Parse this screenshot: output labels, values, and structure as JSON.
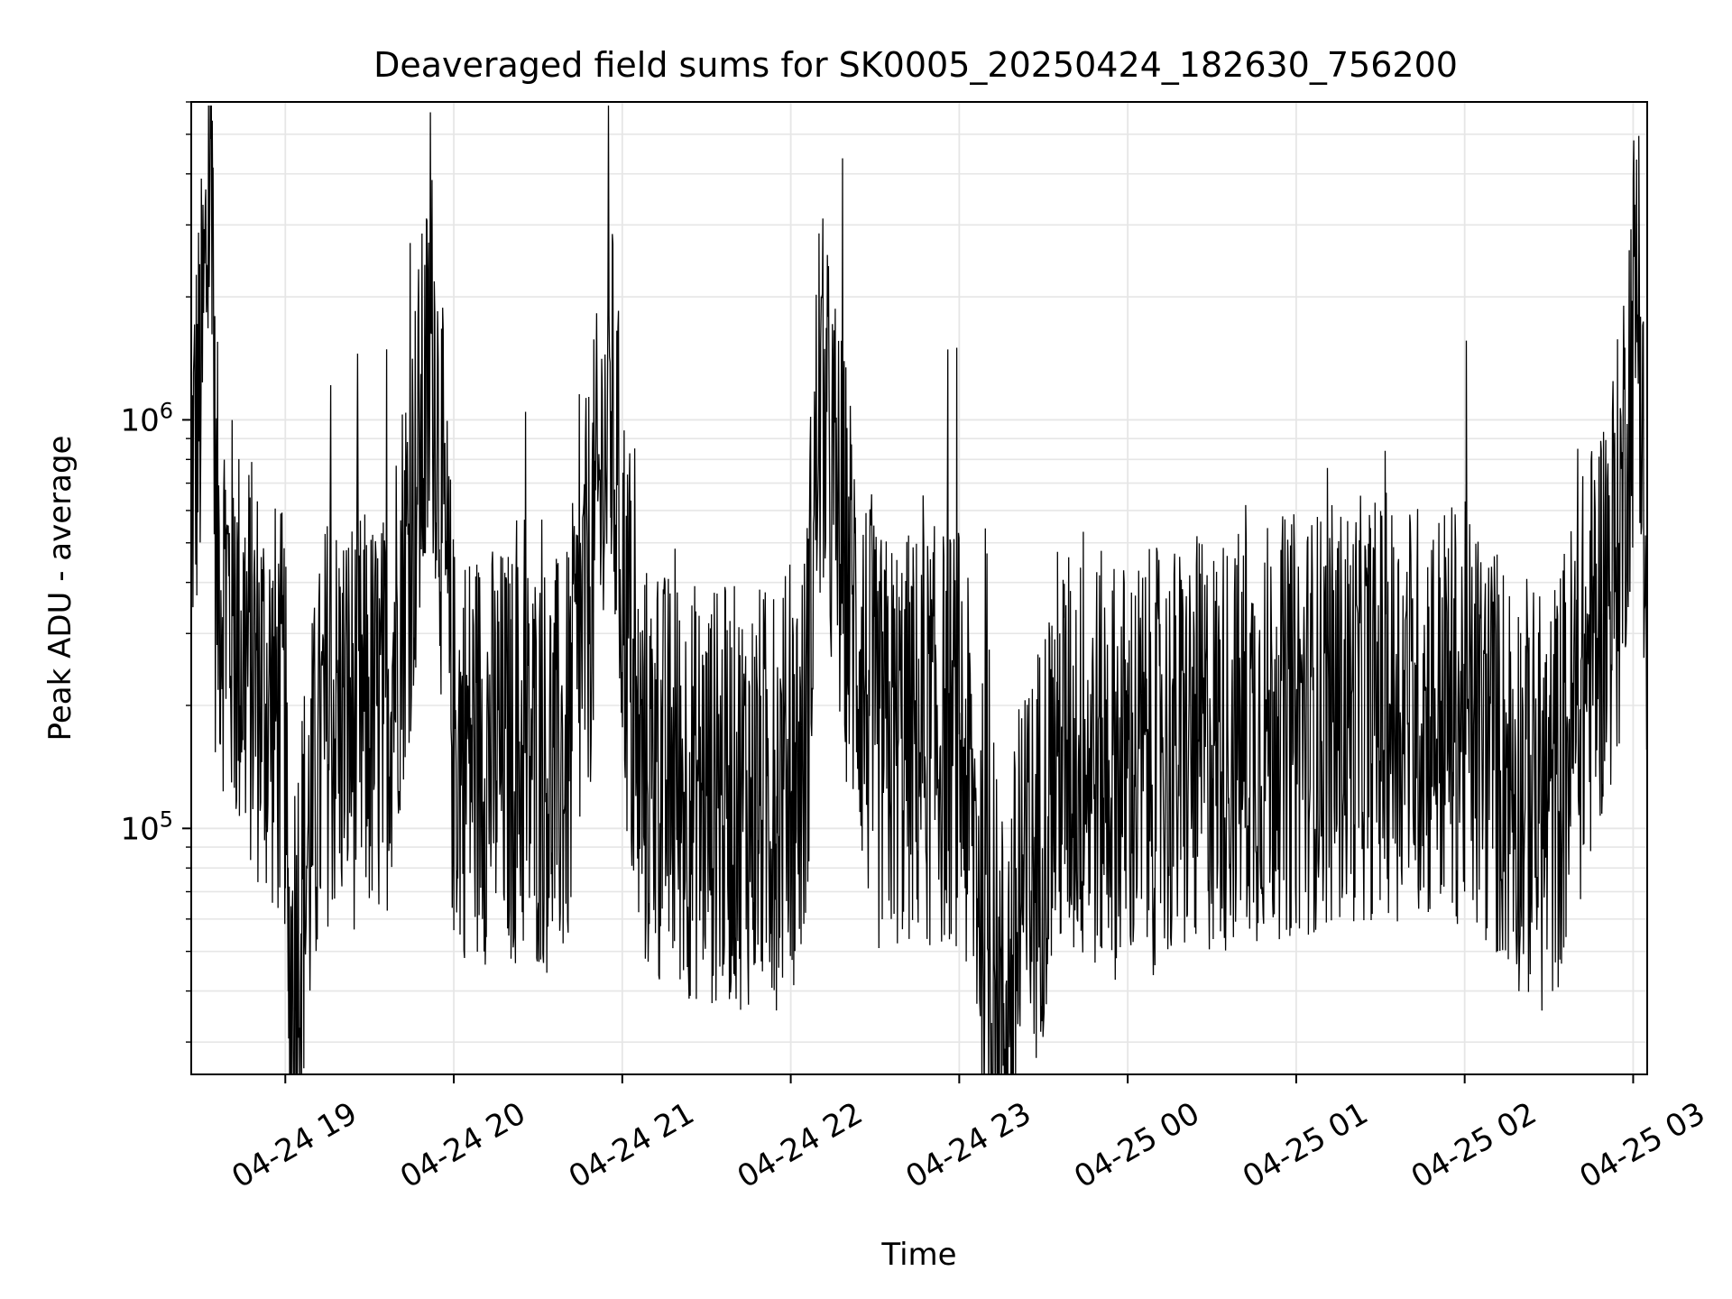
{
  "chart_data": {
    "type": "line",
    "title": "Deaveraged field sums for SK0005_20250424_182630_756200",
    "xlabel": "Time",
    "ylabel": "Peak ADU - average",
    "x_type": "datetime",
    "y_scale": "log",
    "xlim": [
      "2025-04-24T18:26:30",
      "2025-04-25T03:05:00"
    ],
    "ylim": [
      25000,
      6000000
    ],
    "x_ticks": [
      "2025-04-24T19:00",
      "2025-04-24T20:00",
      "2025-04-24T21:00",
      "2025-04-24T22:00",
      "2025-04-24T23:00",
      "2025-04-25T00:00",
      "2025-04-25T01:00",
      "2025-04-25T02:00",
      "2025-04-25T03:00"
    ],
    "x_tick_labels": [
      "04-24 19",
      "04-24 20",
      "04-24 21",
      "04-24 22",
      "04-24 23",
      "04-25 00",
      "04-25 01",
      "04-25 02",
      "04-25 03"
    ],
    "y_ticks": [
      100000,
      1000000
    ],
    "y_tick_labels": [
      {
        "base": "10",
        "exp": "5"
      },
      {
        "base": "10",
        "exp": "6"
      }
    ],
    "grid": true,
    "line_color": "#000000",
    "grid_color": "#e6e6e6",
    "legend": "none",
    "series": [
      {
        "note_on_values": "dense noisy trace (~thousands of samples); key points read from the image, typical band 6e4-5e5",
        "x": [
          "2025-04-24T18:26:30",
          "2025-04-24T18:30",
          "2025-04-24T18:34",
          "2025-04-24T18:35",
          "2025-04-24T18:38",
          "2025-04-24T18:42",
          "2025-04-24T18:48",
          "2025-04-24T18:55",
          "2025-04-24T19:00",
          "2025-04-24T19:01",
          "2025-04-24T19:15",
          "2025-04-24T19:35",
          "2025-04-24T19:53",
          "2025-04-24T20:00",
          "2025-04-24T20:20",
          "2025-04-24T20:40",
          "2025-04-24T20:56",
          "2025-04-24T21:05",
          "2025-04-24T21:30",
          "2025-04-24T21:55",
          "2025-04-24T22:05",
          "2025-04-24T22:10",
          "2025-04-24T22:30",
          "2025-04-24T23:00",
          "2025-04-24T23:15",
          "2025-04-24T23:35",
          "2025-04-25T00:00",
          "2025-04-25T00:30",
          "2025-04-25T01:00",
          "2025-04-25T01:30",
          "2025-04-25T02:00",
          "2025-04-25T02:20",
          "2025-04-25T02:30",
          "2025-04-25T02:40",
          "2025-04-25T02:55",
          "2025-04-25T03:02",
          "2025-04-25T03:05"
        ],
        "y": [
          700000,
          1200000,
          5400000,
          500000,
          400000,
          300000,
          250000,
          200000,
          180000,
          40000,
          190000,
          180000,
          1500000,
          160000,
          150000,
          140000,
          1050000,
          140000,
          120000,
          120000,
          150000,
          1100000,
          160000,
          170000,
          35000,
          150000,
          140000,
          160000,
          180000,
          200000,
          190000,
          130000,
          110000,
          200000,
          500000,
          2600000,
          200000
        ]
      }
    ]
  }
}
